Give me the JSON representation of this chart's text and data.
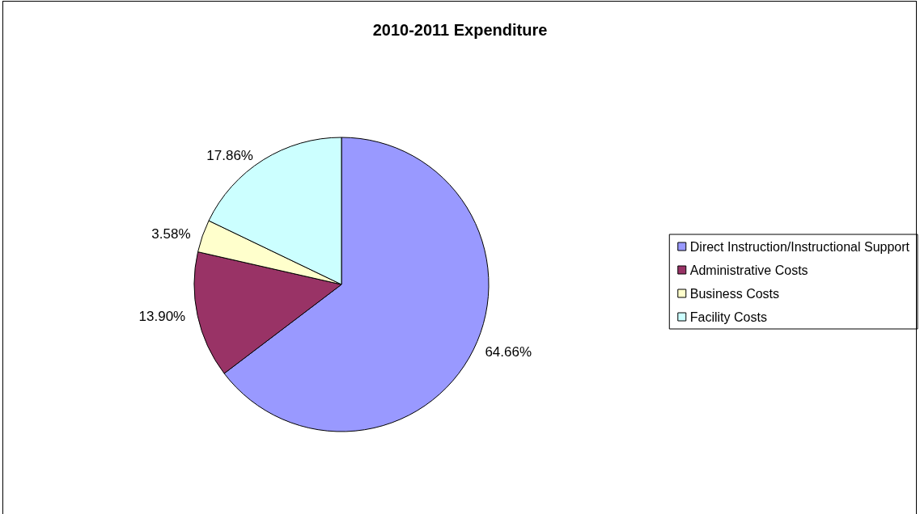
{
  "chart_data": {
    "type": "pie",
    "title": "2010-2011 Expenditure",
    "categories": [
      "Direct Instruction/Instructional Support",
      "Administrative Costs",
      "Business Costs",
      "Facility Costs"
    ],
    "values": [
      64.66,
      13.9,
      3.58,
      17.86
    ],
    "colors": [
      "#9999ff",
      "#993366",
      "#ffffcc",
      "#ccffff"
    ],
    "value_labels": [
      "64.66%",
      "13.90%",
      "3.58%",
      "17.86%"
    ],
    "legend": "right"
  }
}
